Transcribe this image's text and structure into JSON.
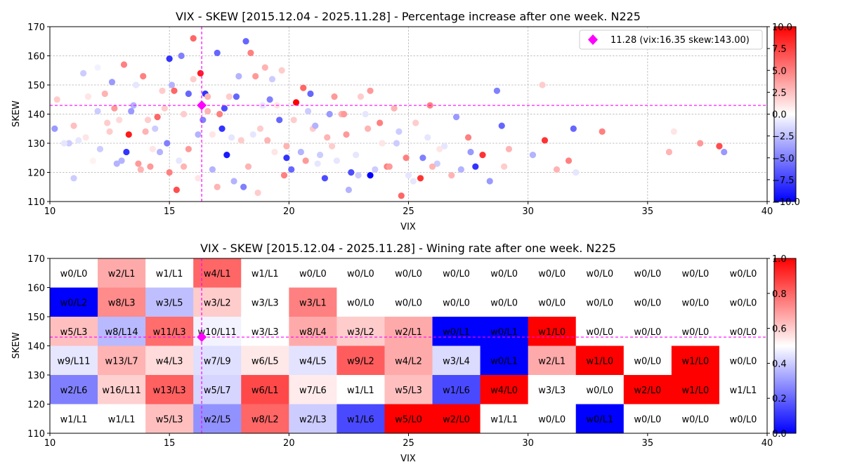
{
  "chart_data": [
    {
      "type": "scatter",
      "title": "VIX - SKEW [2015.12.04 - 2025.11.28]  - Percentage increase after one week. N225",
      "xlabel": "VIX",
      "ylabel": "SKEW",
      "xlim": [
        10,
        40
      ],
      "ylim": [
        110,
        170
      ],
      "x_ticks": [
        "10",
        "15",
        "20",
        "25",
        "30",
        "35",
        "40"
      ],
      "y_ticks": [
        "110",
        "120",
        "130",
        "140",
        "150",
        "160",
        "170"
      ],
      "grid": "dashed",
      "legend": "upper right",
      "legend_label": "11.28 (vix:16.35 skew:143.00)",
      "highlight": {
        "x": 16.35,
        "y": 143.0
      },
      "highlight_color": "#ff00ff",
      "colorbar": {
        "min": -10,
        "max": 10,
        "ticks": [
          "10.0",
          "7.5",
          "5.0",
          "2.5",
          "0.0",
          "−2.5",
          "−5.0",
          "−7.5",
          "−10.0"
        ],
        "colormap": "bwr"
      },
      "points": [
        [
          10.2,
          135,
          -4
        ],
        [
          10.3,
          145,
          2
        ],
        [
          10.8,
          130,
          -2
        ],
        [
          11.0,
          136,
          2.5
        ],
        [
          11.2,
          131,
          -1
        ],
        [
          11.4,
          154,
          -2
        ],
        [
          11.6,
          146,
          1
        ],
        [
          11.8,
          124,
          0.5
        ],
        [
          12.0,
          156,
          -0.5
        ],
        [
          12.1,
          128,
          -2
        ],
        [
          12.3,
          147,
          3
        ],
        [
          12.4,
          137,
          2
        ],
        [
          12.6,
          151,
          -4
        ],
        [
          12.8,
          123,
          -3
        ],
        [
          12.9,
          138,
          1.5
        ],
        [
          13.1,
          157,
          5
        ],
        [
          13.2,
          127,
          -8
        ],
        [
          13.3,
          133,
          9
        ],
        [
          13.5,
          143,
          -3
        ],
        [
          13.6,
          150,
          -1
        ],
        [
          13.8,
          121,
          3
        ],
        [
          13.9,
          153,
          5
        ],
        [
          14.1,
          138,
          2
        ],
        [
          14.3,
          128,
          1
        ],
        [
          14.5,
          139,
          6
        ],
        [
          14.7,
          148,
          2
        ],
        [
          14.9,
          130,
          -5
        ],
        [
          15.0,
          159,
          -8
        ],
        [
          15.1,
          150,
          -3
        ],
        [
          15.3,
          114,
          7
        ],
        [
          15.5,
          160,
          -5
        ],
        [
          15.6,
          122,
          3
        ],
        [
          15.8,
          147,
          -6
        ],
        [
          16.0,
          166,
          6
        ],
        [
          16.2,
          133,
          -3
        ],
        [
          16.3,
          154,
          9
        ],
        [
          16.5,
          147,
          -8
        ],
        [
          16.6,
          146,
          3
        ],
        [
          16.8,
          133,
          1
        ],
        [
          17.0,
          161,
          -6
        ],
        [
          17.1,
          140,
          5
        ],
        [
          17.3,
          142,
          -7
        ],
        [
          17.4,
          126,
          -9
        ],
        [
          17.6,
          132,
          -1
        ],
        [
          17.8,
          146,
          -6
        ],
        [
          18.0,
          131,
          2
        ],
        [
          18.2,
          165,
          -6
        ],
        [
          18.4,
          161,
          5
        ],
        [
          18.6,
          153,
          4
        ],
        [
          18.8,
          135,
          2
        ],
        [
          19.0,
          156,
          3
        ],
        [
          19.2,
          145,
          -5
        ],
        [
          19.4,
          127,
          1
        ],
        [
          19.6,
          138,
          -6
        ],
        [
          19.8,
          119,
          5
        ],
        [
          19.9,
          125,
          -8
        ],
        [
          20.1,
          121,
          -6
        ],
        [
          20.3,
          144,
          10
        ],
        [
          20.6,
          149,
          6
        ],
        [
          20.8,
          141,
          -2
        ],
        [
          21.0,
          135,
          2
        ],
        [
          21.2,
          123,
          -1
        ],
        [
          21.5,
          118,
          -7
        ],
        [
          21.7,
          140,
          -4
        ],
        [
          21.9,
          146,
          4
        ],
        [
          22.2,
          140,
          3
        ],
        [
          22.4,
          133,
          4
        ],
        [
          22.6,
          120,
          -7
        ],
        [
          22.9,
          119,
          -2
        ],
        [
          23.2,
          140,
          -1
        ],
        [
          23.4,
          148,
          4
        ],
        [
          23.4,
          119,
          -10
        ],
        [
          23.8,
          137,
          5
        ],
        [
          24.1,
          122,
          5
        ],
        [
          24.4,
          142,
          3
        ],
        [
          24.5,
          130,
          -2
        ],
        [
          24.7,
          112,
          6
        ],
        [
          24.9,
          125,
          5
        ],
        [
          25.2,
          117,
          -1
        ],
        [
          25.5,
          118,
          8
        ],
        [
          25.6,
          125,
          -5
        ],
        [
          25.9,
          143,
          5
        ],
        [
          26.2,
          123,
          -2
        ],
        [
          26.5,
          129,
          -1
        ],
        [
          26.8,
          119,
          3
        ],
        [
          27.0,
          139,
          -4
        ],
        [
          27.2,
          121,
          -3
        ],
        [
          27.5,
          132,
          5
        ],
        [
          27.6,
          127,
          -4
        ],
        [
          27.8,
          122,
          -8
        ],
        [
          28.1,
          126,
          8
        ],
        [
          28.4,
          117,
          -4
        ],
        [
          28.7,
          148,
          -5
        ],
        [
          28.9,
          136,
          -6
        ],
        [
          29.0,
          122,
          2
        ],
        [
          29.2,
          128,
          3
        ],
        [
          30.2,
          126,
          -3
        ],
        [
          30.6,
          150,
          2
        ],
        [
          30.7,
          131,
          8
        ],
        [
          31.2,
          121,
          3
        ],
        [
          31.7,
          124,
          5
        ],
        [
          31.9,
          135,
          -6
        ],
        [
          32.0,
          120,
          -1
        ],
        [
          33.1,
          134,
          5
        ],
        [
          35.9,
          127,
          3
        ],
        [
          36.1,
          134,
          1
        ],
        [
          37.2,
          130,
          4
        ],
        [
          38.0,
          129,
          7
        ],
        [
          38.2,
          127,
          -4
        ],
        [
          10.6,
          130,
          -1
        ],
        [
          11.0,
          118,
          -2
        ],
        [
          11.5,
          132,
          1
        ],
        [
          12.0,
          141,
          -2
        ],
        [
          12.5,
          134,
          2
        ],
        [
          12.7,
          142,
          4
        ],
        [
          13.0,
          124,
          -3
        ],
        [
          13.4,
          141,
          -4
        ],
        [
          13.7,
          123,
          4
        ],
        [
          14.0,
          134,
          3
        ],
        [
          14.2,
          122,
          4
        ],
        [
          14.4,
          135,
          -2
        ],
        [
          14.6,
          127,
          -3
        ],
        [
          14.8,
          142,
          2
        ],
        [
          15.0,
          120,
          5
        ],
        [
          15.2,
          148,
          6
        ],
        [
          15.4,
          124,
          -1
        ],
        [
          15.6,
          140,
          2
        ],
        [
          15.8,
          128,
          4
        ],
        [
          16.0,
          152,
          2
        ],
        [
          16.2,
          118,
          1
        ],
        [
          16.4,
          138,
          -5
        ],
        [
          16.6,
          141,
          3
        ],
        [
          16.8,
          121,
          -3
        ],
        [
          17.0,
          115,
          3
        ],
        [
          17.2,
          135,
          -8
        ],
        [
          17.5,
          146,
          2
        ],
        [
          17.7,
          117,
          -3
        ],
        [
          17.9,
          153,
          -3
        ],
        [
          18.1,
          115,
          -5
        ],
        [
          18.3,
          122,
          3
        ],
        [
          18.5,
          133,
          -1
        ],
        [
          18.7,
          113,
          2
        ],
        [
          18.9,
          143,
          -1
        ],
        [
          19.1,
          131,
          3
        ],
        [
          19.3,
          152,
          -2
        ],
        [
          19.5,
          143,
          1
        ],
        [
          19.7,
          155,
          2
        ],
        [
          19.9,
          129,
          3
        ],
        [
          20.2,
          138,
          2
        ],
        [
          20.5,
          127,
          -3
        ],
        [
          20.7,
          124,
          4
        ],
        [
          20.9,
          147,
          -6
        ],
        [
          21.1,
          136,
          -3
        ],
        [
          21.3,
          126,
          -2
        ],
        [
          21.6,
          132,
          3
        ],
        [
          21.8,
          129,
          2
        ],
        [
          22.0,
          124,
          -1
        ],
        [
          22.3,
          140,
          4
        ],
        [
          22.5,
          114,
          -3
        ],
        [
          22.8,
          126,
          -1
        ],
        [
          23.0,
          146,
          2
        ],
        [
          23.3,
          135,
          3
        ],
        [
          23.6,
          121,
          -2
        ],
        [
          23.9,
          130,
          1
        ],
        [
          24.2,
          122,
          4
        ],
        [
          24.6,
          134,
          -2
        ],
        [
          25.0,
          119,
          -1
        ],
        [
          25.3,
          137,
          2
        ],
        [
          25.8,
          132,
          -1
        ],
        [
          26.0,
          122,
          3
        ],
        [
          26.3,
          128,
          1
        ]
      ]
    },
    {
      "type": "heatmap",
      "title": "VIX - SKEW [2015.12.04 - 2025.11.28]  - Wining rate after one week. N225",
      "xlabel": "VIX",
      "ylabel": "SKEW",
      "xlim": [
        10,
        40
      ],
      "ylim": [
        110,
        170
      ],
      "x_ticks": [
        "10",
        "15",
        "20",
        "25",
        "30",
        "35",
        "40"
      ],
      "y_ticks": [
        "110",
        "120",
        "130",
        "140",
        "150",
        "160",
        "170"
      ],
      "x_bin_start": 10,
      "x_bin_width": 2,
      "y_bins_top_to_bottom": [
        "160-170",
        "150-160",
        "140-150",
        "130-140",
        "120-130",
        "110-120"
      ],
      "highlight": {
        "x": 16.35,
        "y": 143.0
      },
      "highlight_color": "#ff00ff",
      "colorbar": {
        "min": 0,
        "max": 1,
        "ticks": [
          "1.0",
          "0.8",
          "0.6",
          "0.4",
          "0.2",
          "0.0"
        ],
        "colormap": "bwr"
      },
      "rows": [
        [
          "w0/L0",
          "w2/L1",
          "w1/L1",
          "w4/L1",
          "w1/L1",
          "w0/L0",
          "w0/L0",
          "w0/L0",
          "w0/L0",
          "w0/L0",
          "w0/L0",
          "w0/L0",
          "w0/L0",
          "w0/L0",
          "w0/L0"
        ],
        [
          "w0/L2",
          "w8/L3",
          "w3/L5",
          "w3/L2",
          "w3/L3",
          "w3/L1",
          "w0/L0",
          "w0/L0",
          "w0/L0",
          "w0/L0",
          "w0/L0",
          "w0/L0",
          "w0/L0",
          "w0/L0",
          "w0/L0"
        ],
        [
          "w5/L3",
          "w8/L14",
          "w11/L3",
          "w10/L11",
          "w3/L3",
          "w8/L4",
          "w3/L2",
          "w2/L1",
          "w0/L1",
          "w0/L1",
          "w1/L0",
          "w0/L0",
          "w0/L0",
          "w0/L0",
          "w0/L0"
        ],
        [
          "w9/L11",
          "w13/L7",
          "w4/L3",
          "w7/L9",
          "w6/L5",
          "w4/L5",
          "w9/L2",
          "w4/L2",
          "w3/L4",
          "w0/L1",
          "w2/L1",
          "w1/L0",
          "w0/L0",
          "w1/L0",
          "w0/L0"
        ],
        [
          "w2/L6",
          "w16/L11",
          "w13/L3",
          "w5/L7",
          "w6/L1",
          "w7/L6",
          "w1/L1",
          "w5/L3",
          "w1/L6",
          "w4/L0",
          "w3/L3",
          "w0/L0",
          "w2/L0",
          "w1/L0",
          "w1/L1"
        ],
        [
          "w1/L1",
          "w1/L1",
          "w5/L3",
          "w2/L5",
          "w8/L2",
          "w2/L3",
          "w1/L6",
          "w5/L0",
          "w2/L0",
          "w1/L1",
          "w0/L0",
          "w0/L1",
          "w0/L0",
          "w0/L0",
          "w0/L0"
        ]
      ]
    }
  ]
}
